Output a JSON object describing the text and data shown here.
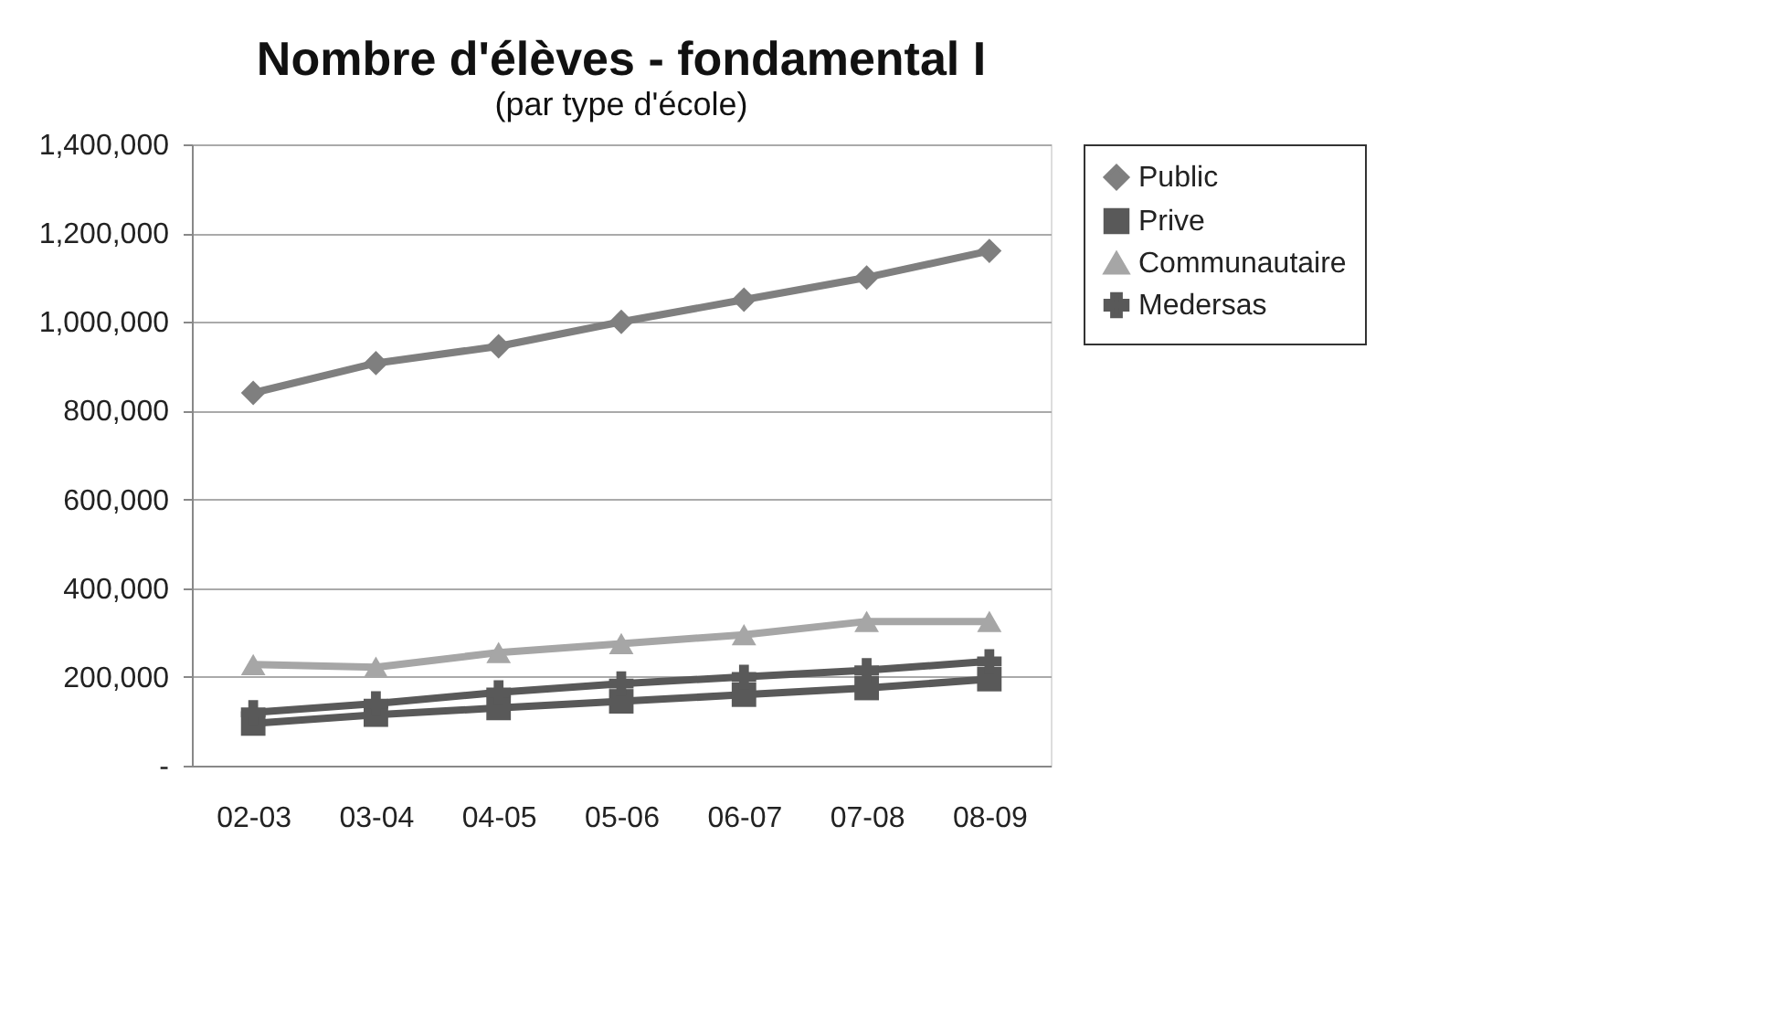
{
  "chart_data": {
    "type": "line",
    "title": "Nombre d'élèves - fondamental I",
    "subtitle": "(par type d'école)",
    "categories": [
      "02-03",
      "03-04",
      "04-05",
      "05-06",
      "06-07",
      "07-08",
      "08-09"
    ],
    "series": [
      {
        "name": "Public",
        "color": "#7f7f7f",
        "marker": "diamond",
        "values": [
          840000,
          907000,
          945000,
          1000000,
          1050000,
          1100000,
          1160000
        ]
      },
      {
        "name": "Prive",
        "color": "#595959",
        "marker": "square",
        "values": [
          95000,
          115000,
          130000,
          145000,
          160000,
          175000,
          195000
        ]
      },
      {
        "name": "Communautaire",
        "color": "#a6a6a6",
        "marker": "triangle",
        "values": [
          228000,
          222000,
          255000,
          275000,
          295000,
          325000,
          325000
        ]
      },
      {
        "name": "Medersas",
        "color": "#595959",
        "marker": "cross",
        "values": [
          120000,
          140000,
          165000,
          185000,
          200000,
          215000,
          235000
        ]
      }
    ],
    "ylim": [
      0,
      1400000
    ],
    "yticks": [
      {
        "value": 0,
        "label": "-"
      },
      {
        "value": 200000,
        "label": "200,000"
      },
      {
        "value": 400000,
        "label": "400,000"
      },
      {
        "value": 600000,
        "label": "600,000"
      },
      {
        "value": 800000,
        "label": "800,000"
      },
      {
        "value": 1000000,
        "label": "1,000,000"
      },
      {
        "value": 1200000,
        "label": "1,200,000"
      },
      {
        "value": 1400000,
        "label": "1,400,000"
      }
    ],
    "grid": "y",
    "legend": "right",
    "line_style": "solid"
  }
}
